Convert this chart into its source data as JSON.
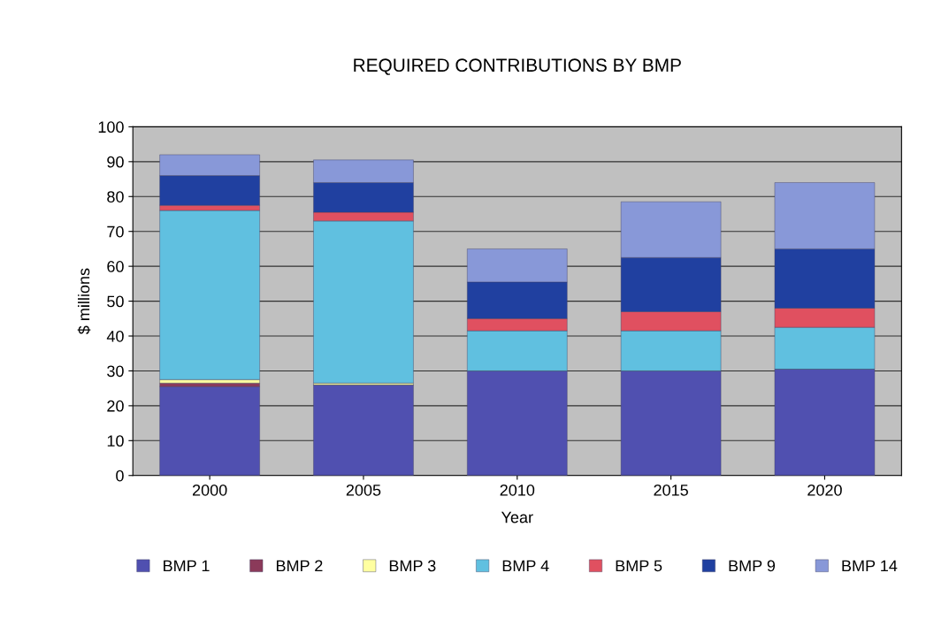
{
  "chart_data": {
    "type": "bar",
    "stacked": true,
    "title": "REQUIRED CONTRIBUTIONS BY BMP",
    "xlabel": "Year",
    "ylabel": "$ millions",
    "categories": [
      "2000",
      "2005",
      "2010",
      "2015",
      "2020"
    ],
    "series": [
      {
        "name": "BMP 1",
        "color": "#5050b0",
        "values": [
          25.5,
          26,
          30,
          30,
          30.5
        ]
      },
      {
        "name": "BMP 2",
        "color": "#8b3a5a",
        "values": [
          1,
          0,
          0,
          0,
          0
        ]
      },
      {
        "name": "BMP 3",
        "color": "#ffffa0",
        "values": [
          1,
          0.5,
          0,
          0,
          0
        ]
      },
      {
        "name": "BMP 4",
        "color": "#60c0e0",
        "values": [
          48.5,
          46.5,
          11.5,
          11.5,
          12
        ]
      },
      {
        "name": "BMP 5",
        "color": "#e05060",
        "values": [
          1.5,
          2.5,
          3.5,
          5.5,
          5.5
        ]
      },
      {
        "name": "BMP 9",
        "color": "#2040a0",
        "values": [
          8.5,
          8.5,
          10.5,
          15.5,
          17
        ]
      },
      {
        "name": "BMP 14",
        "color": "#8898d8",
        "values": [
          6,
          6.5,
          9.5,
          16,
          19
        ]
      }
    ],
    "ylim": [
      0,
      100
    ],
    "yticks": [
      0,
      10,
      20,
      30,
      40,
      50,
      60,
      70,
      80,
      90,
      100
    ],
    "grid": "y",
    "legend": "bottom"
  }
}
